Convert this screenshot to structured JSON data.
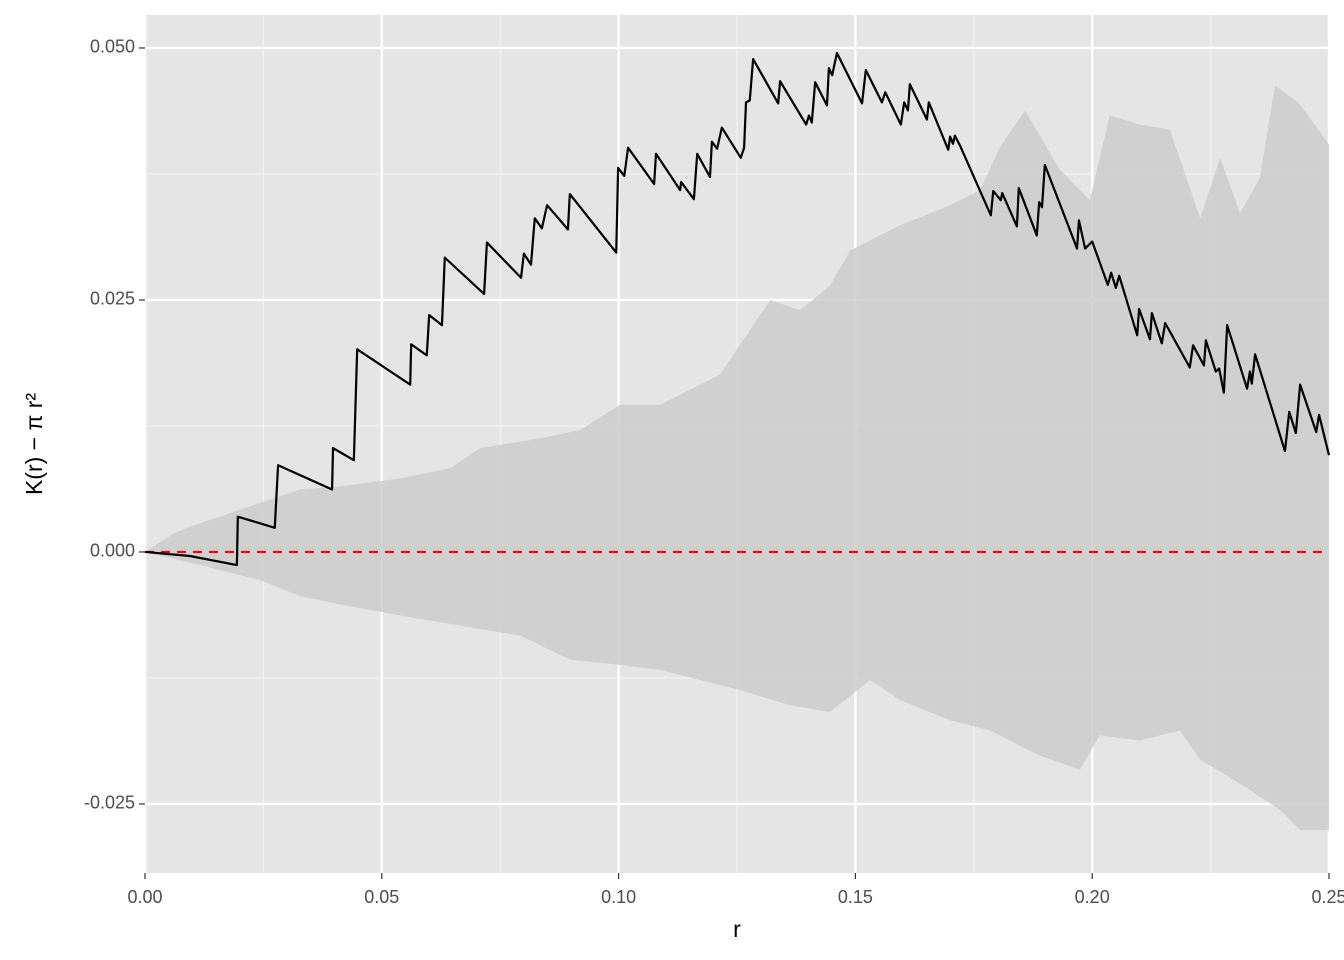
{
  "chart_data": {
    "type": "line",
    "xlabel": "r",
    "ylabel": "K(r) − π r²",
    "xlim": [
      0,
      0.25
    ],
    "ylim": [
      -0.03185,
      0.05327
    ],
    "xticks": [
      {
        "value": 0,
        "label": "0.00"
      },
      {
        "value": 0.05,
        "label": "0.05"
      },
      {
        "value": 0.1,
        "label": "0.10"
      },
      {
        "value": 0.15,
        "label": "0.15"
      },
      {
        "value": 0.2,
        "label": "0.20"
      },
      {
        "value": 0.25,
        "label": "0.25"
      }
    ],
    "yticks": [
      {
        "value": -0.025,
        "label": "-0.025"
      },
      {
        "value": 0,
        "label": "0.000"
      },
      {
        "value": 0.025,
        "label": "0.025"
      },
      {
        "value": 0.05,
        "label": "0.050"
      }
    ],
    "x_minor_breaks": [
      0.025,
      0.075,
      0.125,
      0.175,
      0.225
    ],
    "y_minor_breaks": [
      -0.0125,
      0.0125,
      0.0375
    ],
    "grid": true,
    "reference_line": {
      "value": 0,
      "color": "#ff0000"
    },
    "envelope": {
      "color": "#cccccc",
      "upper": {
        "x": [
          0,
          0.0063,
          0.0106,
          0.0201,
          0.0328,
          0.0412,
          0.0539,
          0.0644,
          0.0708,
          0.0813,
          0.0919,
          0.1003,
          0.1088,
          0.1151,
          0.1214,
          0.132,
          0.1383,
          0.1446,
          0.1489,
          0.1594,
          0.17,
          0.1763,
          0.1807,
          0.1858,
          0.1932,
          0.1995,
          0.2037,
          0.2101,
          0.2164,
          0.2228,
          0.227,
          0.2312,
          0.2354,
          0.2386,
          0.2439,
          0.25
        ],
        "values": [
          0,
          0.0019,
          0.0027,
          0.0042,
          0.0062,
          0.0065,
          0.0073,
          0.0083,
          0.0103,
          0.0111,
          0.0121,
          0.0146,
          0.0146,
          0.0161,
          0.0176,
          0.025,
          0.024,
          0.0264,
          0.0299,
          0.0324,
          0.0344,
          0.0359,
          0.0403,
          0.0438,
          0.0379,
          0.0349,
          0.0433,
          0.0424,
          0.0419,
          0.0331,
          0.0391,
          0.0336,
          0.0371,
          0.0463,
          0.0444,
          0.0404
        ]
      },
      "lower": {
        "x": [
          0,
          0.0116,
          0.0243,
          0.0328,
          0.0412,
          0.0539,
          0.0665,
          0.0792,
          0.0898,
          0.1003,
          0.1088,
          0.1172,
          0.1256,
          0.1362,
          0.1446,
          0.1531,
          0.1594,
          0.17,
          0.1784,
          0.1889,
          0.1974,
          0.2016,
          0.2101,
          0.2185,
          0.2228,
          0.2333,
          0.2397,
          0.2439,
          0.25
        ],
        "values": [
          0,
          -0.0013,
          -0.0028,
          -0.0044,
          -0.0052,
          -0.0063,
          -0.0073,
          -0.0083,
          -0.0107,
          -0.0112,
          -0.0117,
          -0.0127,
          -0.0137,
          -0.0152,
          -0.0159,
          -0.0127,
          -0.0147,
          -0.0167,
          -0.0177,
          -0.0202,
          -0.0216,
          -0.0182,
          -0.0187,
          -0.0177,
          -0.0206,
          -0.0236,
          -0.0256,
          -0.0276,
          -0.0276
        ]
      }
    },
    "line": {
      "color": "#000000",
      "x": [
        0,
        0.0095,
        0.0194,
        0.0196,
        0.0274,
        0.0281,
        0.0395,
        0.0397,
        0.0441,
        0.0448,
        0.056,
        0.0562,
        0.0595,
        0.06,
        0.0627,
        0.0633,
        0.0716,
        0.0722,
        0.0794,
        0.08,
        0.0815,
        0.0823,
        0.0838,
        0.0849,
        0.0893,
        0.0897,
        0.0995,
        0.0999,
        0.1012,
        0.102,
        0.1075,
        0.1079,
        0.113,
        0.1132,
        0.1159,
        0.1166,
        0.1193,
        0.1197,
        0.1208,
        0.1218,
        0.1258,
        0.1265,
        0.1269,
        0.1277,
        0.1284,
        0.1337,
        0.1341,
        0.1396,
        0.1402,
        0.1408,
        0.1415,
        0.144,
        0.1444,
        0.1451,
        0.1461,
        0.1514,
        0.1522,
        0.1556,
        0.1563,
        0.1596,
        0.1603,
        0.1611,
        0.1615,
        0.1651,
        0.1655,
        0.1696,
        0.17,
        0.1706,
        0.171,
        0.1721,
        0.1786,
        0.1791,
        0.1807,
        0.181,
        0.1841,
        0.1845,
        0.1883,
        0.1888,
        0.1894,
        0.19,
        0.1968,
        0.1972,
        0.1985,
        0.2,
        0.2033,
        0.204,
        0.205,
        0.2057,
        0.2095,
        0.2099,
        0.2122,
        0.2126,
        0.2147,
        0.2154,
        0.2166,
        0.2206,
        0.2213,
        0.2236,
        0.224,
        0.2261,
        0.2268,
        0.2278,
        0.2285,
        0.2327,
        0.2333,
        0.2337,
        0.2344,
        0.2407,
        0.2416,
        0.243,
        0.2439,
        0.2473,
        0.2479,
        0.25
      ],
      "values": [
        0,
        -0.0004,
        -0.0013,
        0.0035,
        0.0024,
        0.0086,
        0.0062,
        0.0103,
        0.0091,
        0.0201,
        0.0166,
        0.0206,
        0.0195,
        0.0235,
        0.0225,
        0.0292,
        0.0256,
        0.0307,
        0.0272,
        0.0296,
        0.0285,
        0.0331,
        0.0321,
        0.0344,
        0.032,
        0.0355,
        0.0297,
        0.0381,
        0.0373,
        0.0401,
        0.0365,
        0.0395,
        0.0359,
        0.0367,
        0.035,
        0.0395,
        0.0372,
        0.0407,
        0.04,
        0.0421,
        0.0391,
        0.0401,
        0.0446,
        0.0448,
        0.0489,
        0.0445,
        0.0467,
        0.0424,
        0.0433,
        0.0426,
        0.0466,
        0.0443,
        0.048,
        0.0473,
        0.0495,
        0.0445,
        0.0478,
        0.0446,
        0.0456,
        0.0424,
        0.0446,
        0.0438,
        0.0464,
        0.0429,
        0.0446,
        0.0399,
        0.0412,
        0.0405,
        0.0413,
        0.0403,
        0.0334,
        0.0358,
        0.0349,
        0.0356,
        0.0323,
        0.0361,
        0.0314,
        0.0347,
        0.0342,
        0.0384,
        0.0301,
        0.0329,
        0.0301,
        0.0308,
        0.0265,
        0.0277,
        0.0262,
        0.0274,
        0.0215,
        0.0241,
        0.0211,
        0.0237,
        0.0207,
        0.0227,
        0.0217,
        0.0183,
        0.0205,
        0.0185,
        0.021,
        0.0179,
        0.0182,
        0.0158,
        0.0225,
        0.0162,
        0.0179,
        0.0167,
        0.0196,
        0.01,
        0.0139,
        0.0118,
        0.0166,
        0.0119,
        0.0136,
        0.0096
      ]
    }
  }
}
